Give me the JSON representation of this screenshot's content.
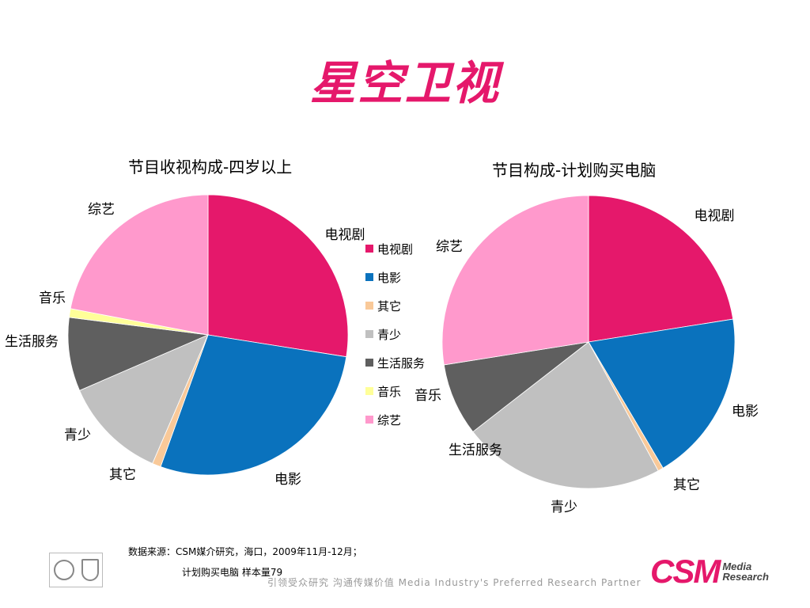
{
  "page": {
    "title": "星空卫视"
  },
  "chart_data": [
    {
      "type": "pie",
      "title": "节目收视构成-四岁以上",
      "categories": [
        "电视剧",
        "电影",
        "其它",
        "青少",
        "生活服务",
        "音乐",
        "综艺"
      ],
      "values": [
        27.5,
        28.0,
        1.0,
        12.0,
        8.5,
        1.0,
        22.0
      ],
      "colors": [
        "#e5186b",
        "#0a72bd",
        "#f9c999",
        "#c0c0c0",
        "#5f5f5f",
        "#ffff99",
        "#ff99cc"
      ],
      "labels": [
        "电视剧",
        "电影",
        "其它",
        "青少",
        "生活服务",
        "音乐",
        "综艺"
      ]
    },
    {
      "type": "pie",
      "title": "节目构成-计划购买电脑",
      "categories": [
        "电视剧",
        "电影",
        "其它",
        "青少",
        "生活服务",
        "音乐",
        "综艺"
      ],
      "values": [
        22.5,
        19.0,
        0.6,
        22.4,
        8.0,
        0.0,
        27.5
      ],
      "colors": [
        "#e5186b",
        "#0a72bd",
        "#f9c999",
        "#c0c0c0",
        "#5f5f5f",
        "#ffff99",
        "#ff99cc"
      ],
      "labels": [
        "电视剧",
        "电影",
        "其它",
        "青少",
        "生活服务",
        "音乐",
        "综艺"
      ]
    }
  ],
  "legend": {
    "items": [
      {
        "label": "电视剧",
        "color": "#e5186b"
      },
      {
        "label": "电影",
        "color": "#0a72bd"
      },
      {
        "label": "其它",
        "color": "#f9c999"
      },
      {
        "label": "青少",
        "color": "#c0c0c0"
      },
      {
        "label": "生活服务",
        "color": "#5f5f5f"
      },
      {
        "label": "音乐",
        "color": "#ffff99"
      },
      {
        "label": "综艺",
        "color": "#ff99cc"
      }
    ]
  },
  "footer": {
    "source": "数据来源：CSM媒介研究，海口，2009年11月-12月；",
    "sample": "计划购买电脑 样本量79",
    "slogan": "引领受众研究  沟通传媒价值   Media Industry's Preferred Research Partner",
    "logo_main": "CSM",
    "logo_sub1": "Media",
    "logo_sub2": "Research"
  }
}
